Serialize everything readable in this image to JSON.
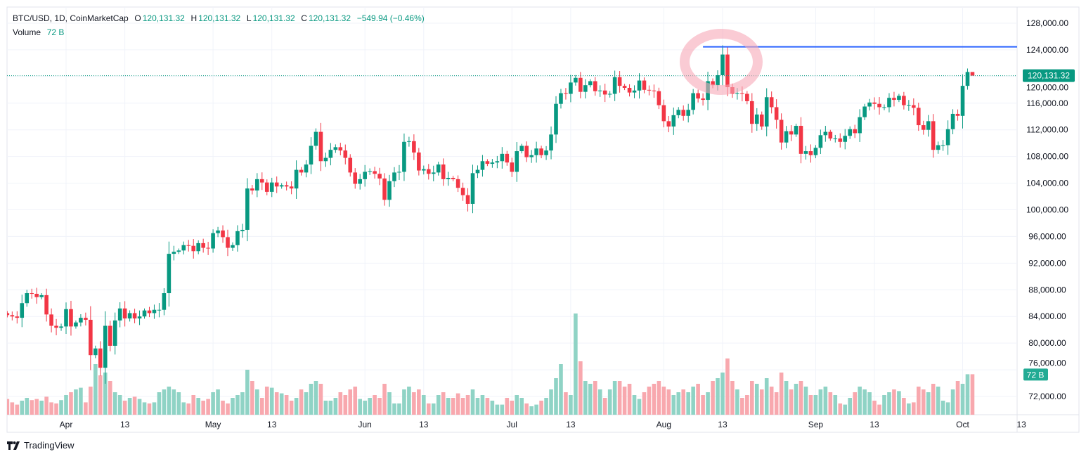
{
  "legend": {
    "symbol": "BTC/USD, 1D, CoinMarketCap",
    "o_label": "O",
    "o": "120,131.32",
    "h_label": "H",
    "h": "120,131.32",
    "l_label": "L",
    "l": "120,131.32",
    "c_label": "C",
    "c": "120,131.32",
    "change": "−549.94 (−0.46%)",
    "volume_label": "Volume",
    "volume": "72 B"
  },
  "brand": "TradingView",
  "chart_data": {
    "type": "candlestick",
    "title": "BTC/USD, 1D, CoinMarketCap",
    "start_date": "2025-03-20",
    "close": [
      84200,
      84000,
      83800,
      86000,
      87500,
      87400,
      86900,
      87200,
      84300,
      82600,
      82300,
      82500,
      85100,
      82500,
      83100,
      83800,
      83500,
      78200,
      79200,
      76300,
      82600,
      79600,
      83400,
      85200,
      83700,
      84500,
      83700,
      84000,
      84900,
      84500,
      85000,
      85000,
      87500,
      93400,
      93700,
      93900,
      94700,
      94600,
      93800,
      95000,
      94300,
      94200,
      96500,
      96900,
      95900,
      94300,
      94700,
      96800,
      97000,
      103200,
      102900,
      104600,
      104100,
      102700,
      104100,
      103500,
      103700,
      103500,
      103200,
      106000,
      105600,
      106800,
      109600,
      111700,
      107300,
      107800,
      109000,
      109400,
      108900,
      107800,
      105600,
      103900,
      104600,
      105700,
      105800,
      105400,
      104700,
      101500,
      104300,
      105600,
      105700,
      110200,
      110300,
      108600,
      105900,
      106100,
      105400,
      105600,
      106800,
      104600,
      104800,
      104600,
      103300,
      102200,
      100900,
      105500,
      106000,
      107300,
      106900,
      107100,
      107300,
      108400,
      107100,
      105700,
      108800,
      109600,
      107900,
      108200,
      109200,
      108200,
      108900,
      111300,
      115900,
      117500,
      117400,
      119100,
      119800,
      117700,
      118700,
      119300,
      117800,
      117900,
      117300,
      117400,
      119900,
      118600,
      118300,
      117600,
      117900,
      119400,
      118000,
      117900,
      117800,
      115700,
      113300,
      112500,
      114200,
      115000,
      114100,
      115000,
      117500,
      116700,
      116500,
      119300,
      118700,
      120200,
      123300,
      118400,
      117400,
      117500,
      117400,
      116300,
      112900,
      114300,
      112500,
      116900,
      115400,
      113500,
      110100,
      111800,
      111300,
      112600,
      108400,
      108800,
      108200,
      109300,
      111200,
      111700,
      110700,
      110700,
      110200,
      111100,
      112100,
      111500,
      113900,
      115500,
      116100,
      115900,
      115400,
      115400,
      116800,
      116500,
      117100,
      115700,
      115700,
      115300,
      112700,
      112000,
      113300,
      109000,
      109700,
      109700,
      112100,
      114400,
      114100,
      118600,
      120681.26,
      120131.32
    ],
    "volume_b": [
      28,
      22,
      18,
      25,
      30,
      26,
      28,
      25,
      32,
      22,
      20,
      26,
      35,
      40,
      45,
      48,
      22,
      50,
      90,
      70,
      75,
      60,
      40,
      35,
      25,
      30,
      32,
      28,
      22,
      20,
      22,
      40,
      45,
      50,
      45,
      40,
      22,
      20,
      35,
      30,
      25,
      28,
      40,
      45,
      25,
      20,
      30,
      35,
      40,
      80,
      60,
      45,
      30,
      50,
      48,
      40,
      38,
      35,
      25,
      30,
      45,
      40,
      55,
      60,
      55,
      25,
      25,
      30,
      40,
      35,
      45,
      50,
      28,
      25,
      30,
      35,
      30,
      55,
      40,
      20,
      20,
      45,
      50,
      40,
      45,
      35,
      20,
      20,
      35,
      40,
      30,
      30,
      38,
      30,
      35,
      45,
      30,
      35,
      30,
      25,
      18,
      18,
      30,
      25,
      35,
      30,
      20,
      15,
      18,
      25,
      30,
      45,
      65,
      90,
      40,
      35,
      180,
      95,
      60,
      55,
      60,
      45,
      30,
      45,
      60,
      60,
      50,
      55,
      35,
      28,
      40,
      50,
      55,
      60,
      50,
      45,
      35,
      40,
      45,
      40,
      50,
      55,
      35,
      40,
      60,
      65,
      75,
      100,
      60,
      45,
      30,
      35,
      60,
      55,
      45,
      65,
      50,
      40,
      75,
      60,
      45,
      55,
      60,
      50,
      35,
      35,
      45,
      50,
      40,
      35,
      20,
      18,
      30,
      40,
      50,
      45,
      40,
      25,
      18,
      35,
      40,
      45,
      42,
      30,
      20,
      22,
      50,
      45,
      40,
      55,
      50,
      25,
      22,
      45,
      60,
      55,
      72,
      72
    ],
    "y_ticks": [
      "128,000.00",
      "124,000.00",
      "120,000.00",
      "116,000.00",
      "112,000.00",
      "108,000.00",
      "104,000.00",
      "100,000.00",
      "96,000.00",
      "92,000.00",
      "88,000.00",
      "84,000.00",
      "80,000.00",
      "76,000.00",
      "72,000.00"
    ],
    "y_tick_values": [
      128000,
      124000,
      120000,
      116000,
      112000,
      108000,
      104000,
      100000,
      96000,
      92000,
      88000,
      84000,
      80000,
      76000,
      72000
    ],
    "x_ticks": [
      {
        "date": "2025-04-01",
        "label": "Apr"
      },
      {
        "date": "2025-04-13",
        "label": "13"
      },
      {
        "date": "2025-05-01",
        "label": "May"
      },
      {
        "date": "2025-05-13",
        "label": "13"
      },
      {
        "date": "2025-06-01",
        "label": "Jun"
      },
      {
        "date": "2025-06-13",
        "label": "13"
      },
      {
        "date": "2025-07-01",
        "label": "Jul"
      },
      {
        "date": "2025-07-13",
        "label": "13"
      },
      {
        "date": "2025-08-01",
        "label": "Aug"
      },
      {
        "date": "2025-08-13",
        "label": "13"
      },
      {
        "date": "2025-09-01",
        "label": "Sep"
      },
      {
        "date": "2025-09-13",
        "label": "13"
      },
      {
        "date": "2025-10-01",
        "label": "Oct"
      },
      {
        "date": "2025-10-13",
        "label": "13"
      }
    ],
    "ylim": [
      70000,
      128800
    ],
    "last_price_label": "120,131.32",
    "last_volume_label": "72 B",
    "horizontal_line": {
      "price": 124450,
      "from_date": "2025-08-09",
      "color": "#2962ff"
    },
    "highlight_circle": {
      "date": "2025-08-13",
      "color": "#f7a8b8"
    },
    "grid": true,
    "colors": {
      "up": "#089981",
      "down": "#f23645",
      "up_volume": "#8fd3c5",
      "down_volume": "#f8a8ae",
      "grid": "#f0f3fa"
    }
  }
}
